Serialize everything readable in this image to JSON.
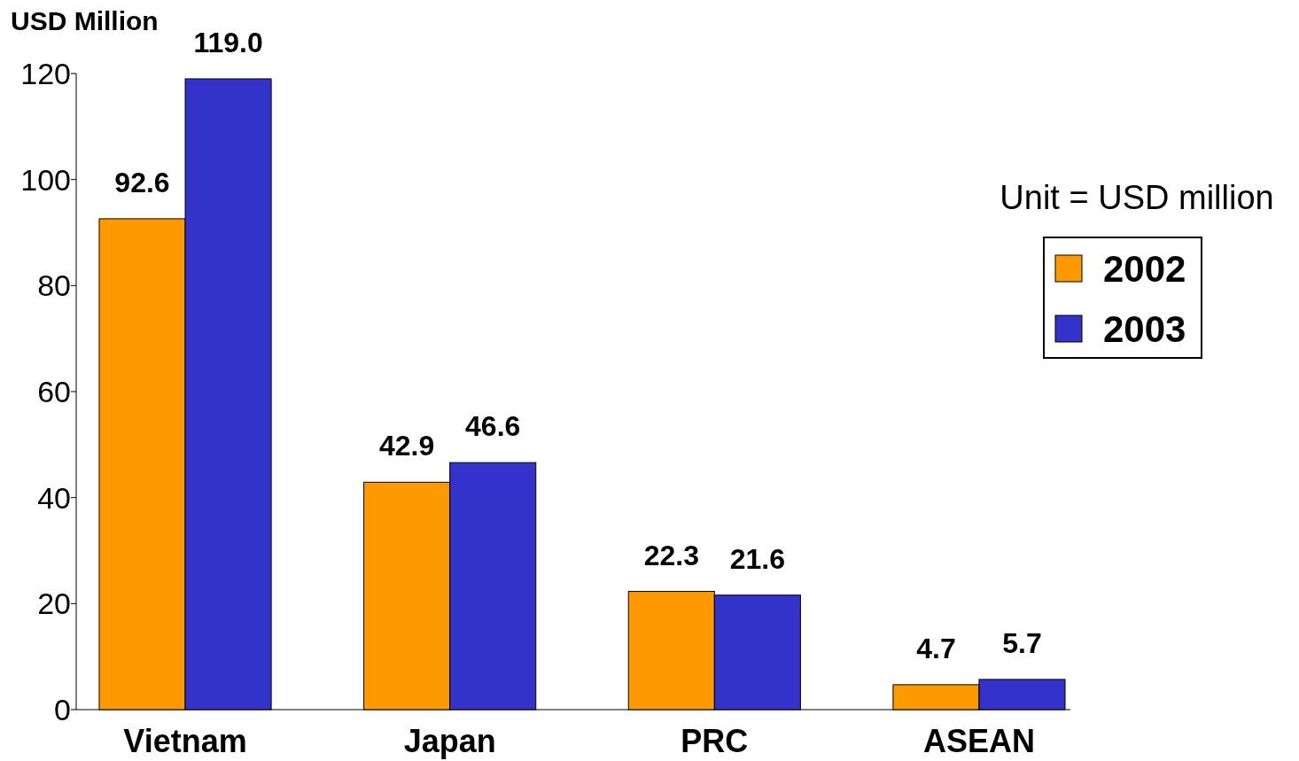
{
  "chart_data": {
    "type": "bar",
    "ylabel": "USD Million",
    "categories": [
      "Vietnam",
      "Japan",
      "PRC",
      "ASEAN"
    ],
    "series": [
      {
        "name": "2002",
        "color": "#ff9900",
        "values": [
          92.6,
          42.9,
          22.3,
          4.7
        ],
        "value_labels": [
          "92.6",
          "42.9",
          "22.3",
          "4.7"
        ]
      },
      {
        "name": "2003",
        "color": "#3333cc",
        "values": [
          119.0,
          46.6,
          21.6,
          5.7
        ],
        "value_labels": [
          "119.0",
          "46.6",
          "21.6",
          "5.7"
        ]
      }
    ],
    "ylim": [
      0,
      120
    ],
    "yticks": [
      0,
      20,
      40,
      60,
      80,
      100,
      120
    ],
    "grid": false,
    "legend": "right",
    "annotations": [
      "Unit = USD million"
    ]
  }
}
